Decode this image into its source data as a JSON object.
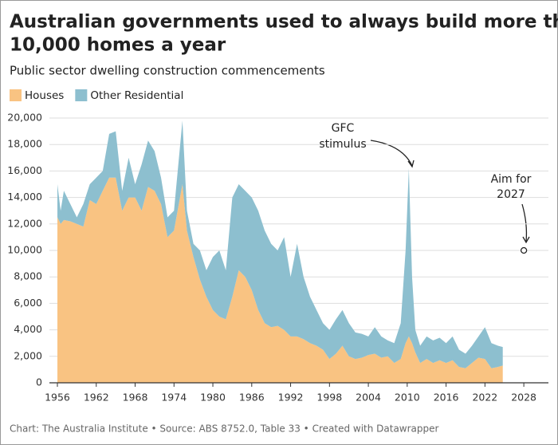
{
  "chart_data": {
    "type": "stacked-area",
    "title": [
      "Australian governments used to always build more than",
      "10,000 homes a year"
    ],
    "subtitle": "Public sector dwelling construction commencements",
    "footer": "Chart: The Australia Institute  • Source: ABS 8752.0, Table 33 • Created with Datawrapper",
    "x": [
      1956,
      1956.5,
      1957,
      1958,
      1959,
      1960,
      1961,
      1962,
      1963,
      1964,
      1965,
      1966,
      1967,
      1968,
      1969,
      1970,
      1971,
      1972,
      1973,
      1974,
      1975.3,
      1976,
      1977,
      1978,
      1979,
      1980,
      1981,
      1982,
      1983,
      1984,
      1985,
      1986,
      1987,
      1988,
      1989,
      1990,
      1991,
      1992,
      1993,
      1994,
      1995,
      1996,
      1997,
      1998,
      1999,
      2000,
      2001,
      2002,
      2003,
      2004,
      2005,
      2006,
      2007,
      2008,
      2009,
      2009.75,
      2010.25,
      2010.75,
      2011.25,
      2012,
      2013,
      2014,
      2015,
      2016,
      2017,
      2018,
      2019,
      2020,
      2021,
      2022,
      2023,
      2024,
      2024.75
    ],
    "series": [
      {
        "name": "Houses",
        "color": "#f9c382",
        "values": [
          12500,
          12000,
          12300,
          12200,
          12000,
          11800,
          13800,
          13500,
          14500,
          15500,
          15500,
          13000,
          14000,
          14000,
          13000,
          14800,
          14500,
          13500,
          11000,
          11500,
          15000,
          11500,
          9500,
          7800,
          6500,
          5500,
          5000,
          4800,
          6500,
          8500,
          8000,
          7000,
          5500,
          4500,
          4200,
          4300,
          4000,
          3500,
          3500,
          3300,
          3000,
          2800,
          2500,
          1800,
          2200,
          2800,
          2000,
          1800,
          1900,
          2100,
          2200,
          1900,
          2000,
          1500,
          1800,
          3000,
          3500,
          3000,
          2300,
          1500,
          1800,
          1500,
          1700,
          1500,
          1700,
          1200,
          1100,
          1500,
          1900,
          1800,
          1100,
          1200,
          1300
        ]
      },
      {
        "name": "Other Residential",
        "color": "#8dbfcf",
        "values": [
          2500,
          1000,
          2200,
          1300,
          500,
          1700,
          1200,
          2000,
          1500,
          3300,
          3500,
          1500,
          3000,
          1000,
          3500,
          3500,
          3000,
          2000,
          1500,
          1500,
          4800,
          1500,
          1000,
          2200,
          2000,
          4000,
          5000,
          3700,
          7500,
          6500,
          6500,
          7000,
          7500,
          7000,
          6300,
          5700,
          7000,
          4500,
          7000,
          4700,
          3500,
          2700,
          2000,
          2200,
          2600,
          2700,
          2500,
          2000,
          1800,
          1400,
          2000,
          1600,
          1200,
          1500,
          2700,
          7000,
          12700,
          5000,
          1700,
          1300,
          1700,
          1700,
          1700,
          1500,
          1800,
          1300,
          1100,
          1300,
          1600,
          2400,
          1900,
          1600,
          1400
        ]
      }
    ],
    "xlim": [
      1954.77,
      2031.8
    ],
    "xticks": [
      1956,
      1962,
      1968,
      1974,
      1980,
      1986,
      1992,
      1998,
      2004,
      2010,
      2016,
      2022,
      2028
    ],
    "ylim": [
      0,
      20000
    ],
    "yticks": [
      0,
      {
        "value": 2000,
        "label": "2,000"
      },
      {
        "value": 4000,
        "label": "4,000"
      },
      {
        "value": 6000,
        "label": "6,000"
      },
      {
        "value": 8000,
        "label": "8,000"
      },
      {
        "value": 10000,
        "label": "10,000"
      },
      {
        "value": 12000,
        "label": "12,000"
      },
      {
        "value": 14000,
        "label": "14,000"
      },
      {
        "value": 16000,
        "label": "16,000"
      },
      {
        "value": 18000,
        "label": "18,000"
      },
      {
        "value": 20000,
        "label": "20,000"
      }
    ],
    "grid": true,
    "annotations": [
      {
        "text": [
          "GFC",
          "stimulus"
        ]
      },
      {
        "text": [
          "Aim for",
          "2027"
        ],
        "x": 2028,
        "y": 10000
      }
    ]
  }
}
